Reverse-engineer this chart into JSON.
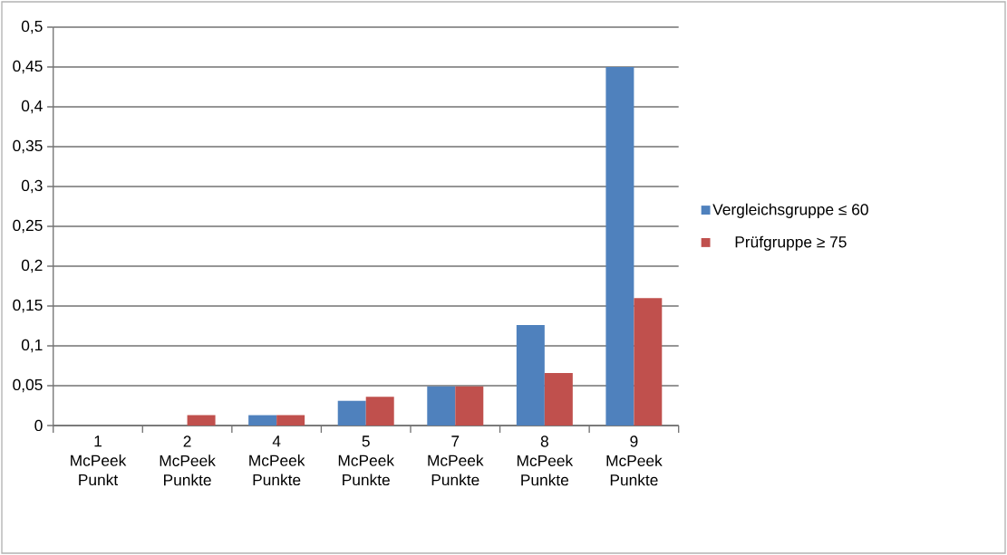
{
  "chart_data": {
    "type": "bar",
    "categories": [
      "1 McPeek Punkt",
      "2 McPeek Punkte",
      "4 McPeek Punkte",
      "5 McPeek Punkte",
      "7 McPeek Punkte",
      "8 McPeek Punkte",
      "9 McPeek Punkte"
    ],
    "series": [
      {
        "name": "Vergleichsgruppe ≤ 60",
        "color": "#4f81bd",
        "values": [
          0,
          0,
          0.013,
          0.031,
          0.049,
          0.126,
          0.45
        ]
      },
      {
        "name": "Prüfgruppe ≥ 75",
        "color": "#c0504d",
        "values": [
          0,
          0.013,
          0.013,
          0.036,
          0.049,
          0.066,
          0.16
        ]
      }
    ],
    "ylim": [
      0,
      0.5
    ],
    "yticks": [
      0,
      {
        "value": 0.05,
        "label": "0,05"
      },
      {
        "value": 0.1,
        "label": "0,1"
      },
      {
        "value": 0.15,
        "label": "0,15"
      },
      {
        "value": 0.2,
        "label": "0,2"
      },
      {
        "value": 0.25,
        "label": "0,25"
      },
      {
        "value": 0.3,
        "label": "0,3"
      },
      {
        "value": 0.35,
        "label": "0,35"
      },
      {
        "value": 0.4,
        "label": "0,4"
      },
      {
        "value": 0.45,
        "label": "0,45"
      },
      {
        "value": 0.5,
        "label": "0,5"
      }
    ],
    "grid": "y",
    "legend": "right"
  }
}
